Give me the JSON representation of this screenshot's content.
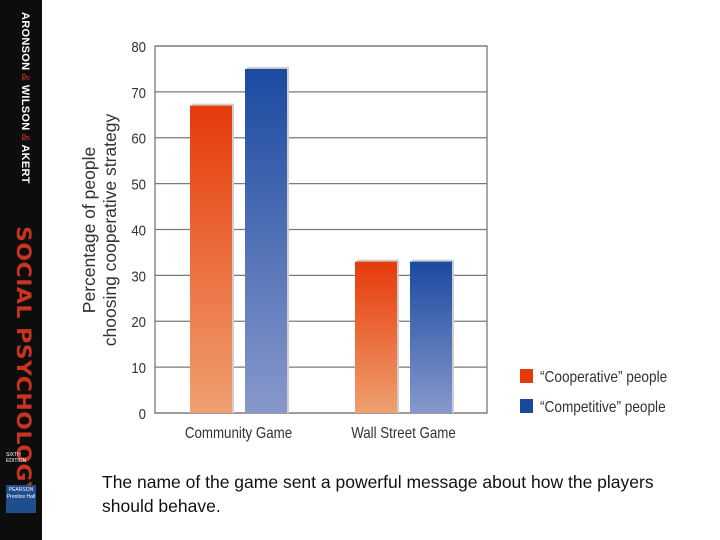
{
  "sidebar": {
    "authors": [
      "ARONSON",
      "WILSON",
      "AKERT"
    ],
    "separator": "&",
    "book_title": "SOCIAL PSYCHOLOGY",
    "edition": "SIXTH EDITION",
    "publisher": "PEARSON Prentice Hall"
  },
  "caption": "The name of the game sent a powerful message about how the players should behave.",
  "chart_data": {
    "type": "bar",
    "categories": [
      "Community Game",
      "Wall Street Game"
    ],
    "series": [
      {
        "name": "“Cooperative” people",
        "values": [
          67,
          33
        ],
        "color_top": "#e63a0a",
        "color_bottom": "#f0a070"
      },
      {
        "name": "“Competitive” people",
        "values": [
          75,
          33
        ],
        "color_top": "#1a4aa0",
        "color_bottom": "#8898cc"
      }
    ],
    "ylabel_lines": [
      "Percentage of people",
      "choosing cooperative strategy"
    ],
    "xlabel": "",
    "ylim": [
      0,
      80
    ],
    "yticks": [
      0,
      10,
      20,
      30,
      40,
      50,
      60,
      70,
      80
    ],
    "grid": true,
    "legend_position": "right"
  }
}
